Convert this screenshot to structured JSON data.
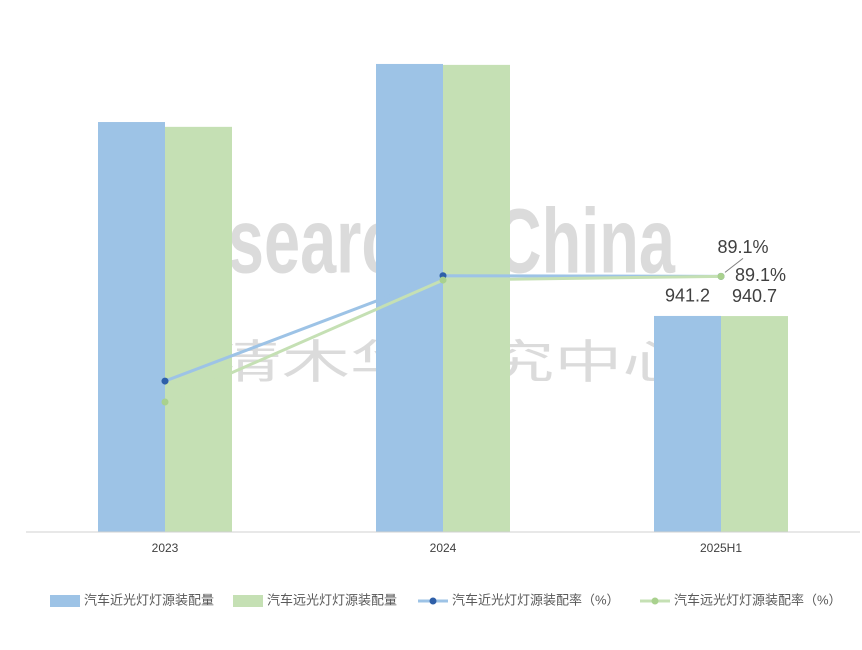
{
  "chart_data": {
    "type": "bar-line",
    "watermark": [
      "ResearchInChina",
      "水清木华研究中心"
    ],
    "categories": [
      "2023",
      "2024",
      "2025H1"
    ],
    "ylim": [
      0,
      2200
    ],
    "y2lim": [
      0,
      176
    ],
    "series": [
      {
        "name": "汽车近光灯灯源装配量",
        "type": "bar",
        "color": "#9dc3e6",
        "values": [
          1786,
          2039,
          941.2
        ],
        "value_labels": [
          null,
          null,
          "941.2"
        ]
      },
      {
        "name": "汽车远光灯灯源装配量",
        "type": "bar",
        "color": "#c5e0b4",
        "values": [
          1765,
          2035,
          940.7
        ],
        "value_labels": [
          null,
          null,
          "940.7"
        ]
      },
      {
        "name": "汽车近光灯灯源装配率（%）",
        "type": "line",
        "axis": "y2",
        "color": "#9dc3e6",
        "marker_color": "#2e5fa8",
        "values": [
          52.6,
          89.3,
          89.1
        ],
        "value_labels": [
          null,
          null,
          "89.1%"
        ]
      },
      {
        "name": "汽车远光灯灯源装配率（%）",
        "type": "line",
        "axis": "y2",
        "color": "#c5e0b4",
        "marker_color": "#a9d18e",
        "values": [
          45.3,
          87.8,
          89.1
        ],
        "value_labels": [
          null,
          null,
          "89.1%"
        ]
      }
    ]
  }
}
